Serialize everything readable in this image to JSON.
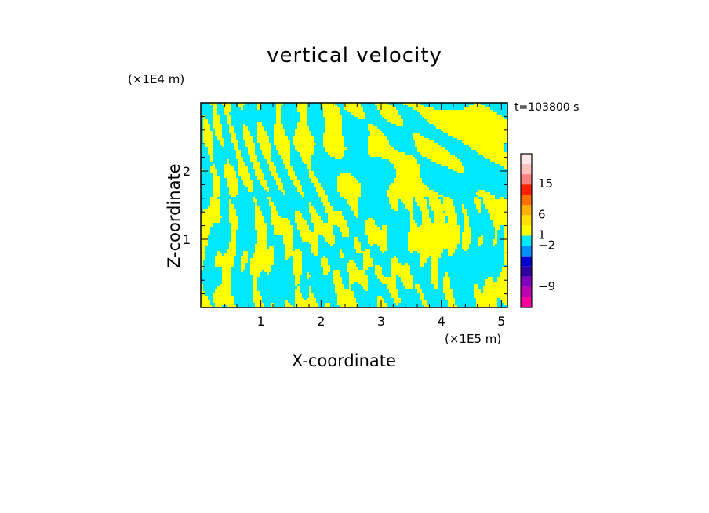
{
  "chart_data": {
    "type": "heatmap",
    "title": "vertical velocity",
    "xlabel": "X-coordinate",
    "ylabel": "Z-coordinate",
    "x_unit": "(×1E5 m)",
    "z_unit": "(×1E4 m)",
    "time_label": "t=103800 s",
    "xlim": [
      0,
      5.1
    ],
    "zlim": [
      0,
      3.0
    ],
    "x_ticks": [
      "1",
      "2",
      "3",
      "4",
      "5"
    ],
    "x_tick_values": [
      1,
      2,
      3,
      4,
      5
    ],
    "z_ticks": [
      "1",
      "2"
    ],
    "z_tick_values": [
      1,
      2
    ],
    "field_colors": [
      "#ffff00",
      "#00e8ff"
    ],
    "colorbar": {
      "labels": [
        "15",
        "6",
        "1",
        "−2",
        "−9"
      ],
      "label_values": [
        15,
        6,
        1,
        -2,
        -9
      ],
      "colors": [
        "#ffe8e8",
        "#ffc0c0",
        "#ff8080",
        "#ff2000",
        "#ff7000",
        "#ffb000",
        "#ffe000",
        "#ffff00",
        "#00e8ff",
        "#0090ff",
        "#0000d0",
        "#3000a0",
        "#8000c0",
        "#c000b0",
        "#ff00a0"
      ]
    }
  }
}
